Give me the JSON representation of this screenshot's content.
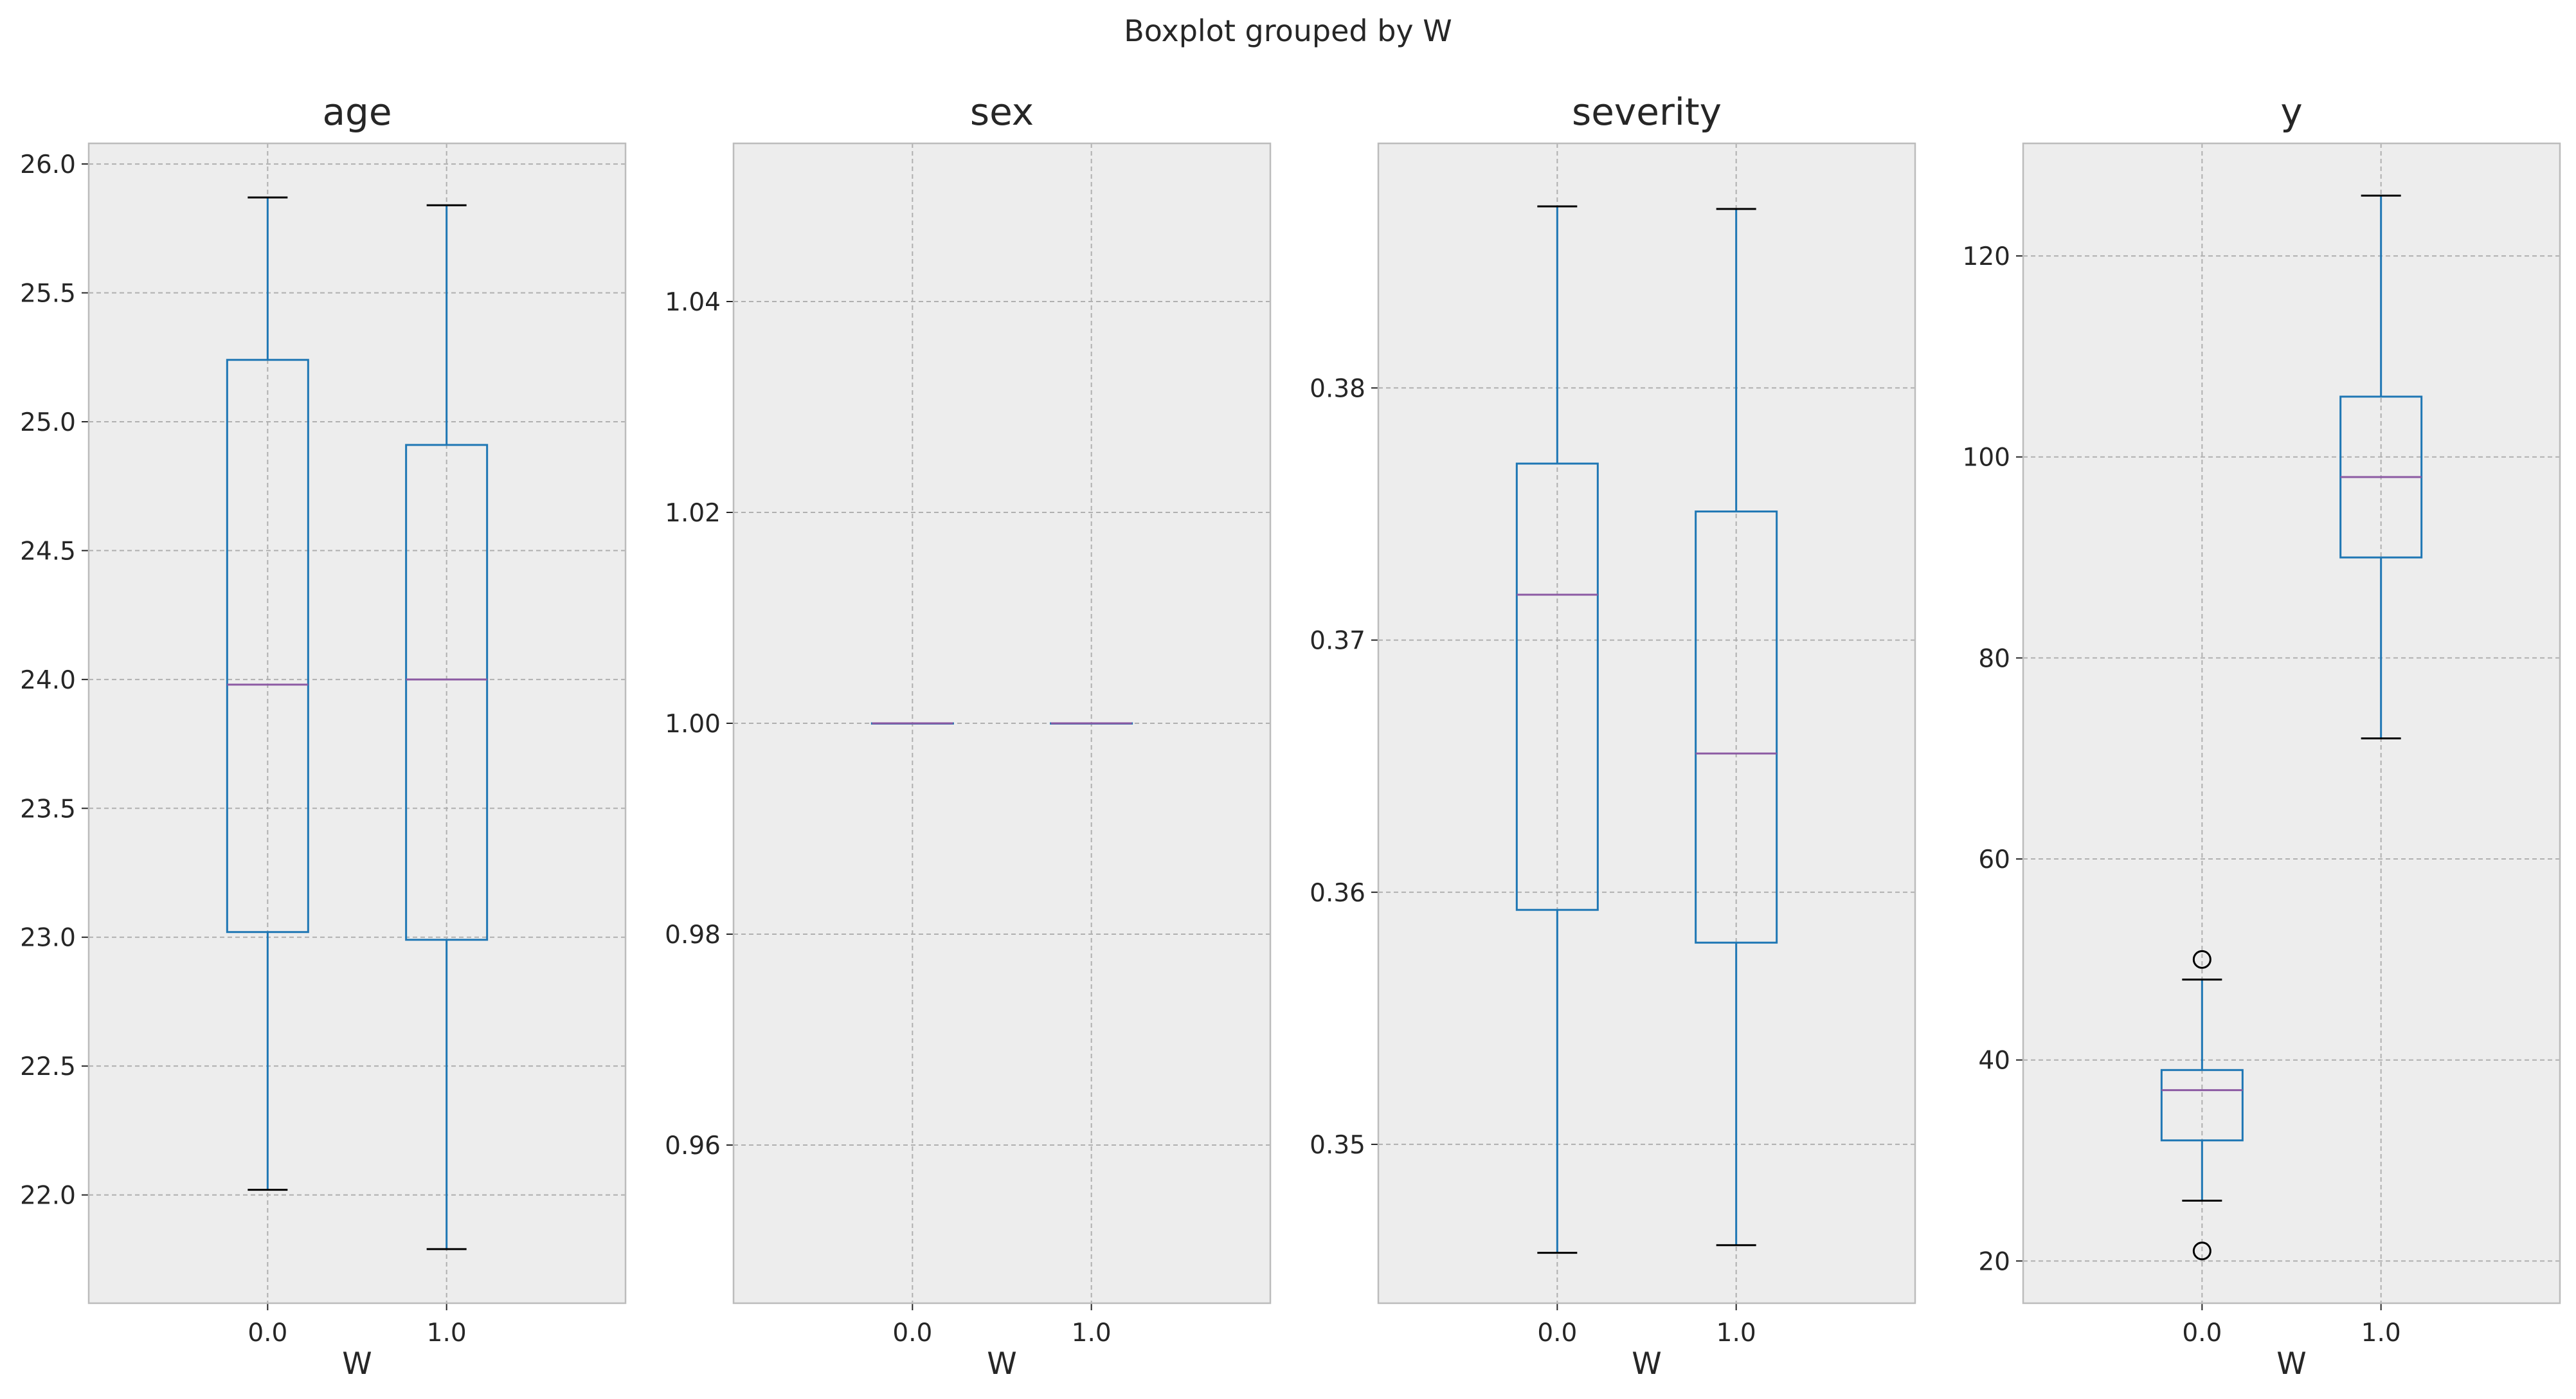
{
  "suptitle": "Boxplot grouped by W",
  "colors": {
    "box": "#1f77b4",
    "median": "#8c5aa3",
    "background": "#ededed",
    "grid": "#b0b0b0",
    "spine": "#bcbcbc",
    "text": "#262626"
  },
  "chart_data": [
    {
      "type": "boxplot",
      "title": "age",
      "xlabel": "W",
      "categories": [
        "0.0",
        "1.0"
      ],
      "ylim": [
        21.58,
        26.08
      ],
      "yticks": [
        22.0,
        22.5,
        23.0,
        23.5,
        24.0,
        24.5,
        25.0,
        25.5,
        26.0
      ],
      "ytick_labels": [
        "22.0",
        "22.5",
        "23.0",
        "23.5",
        "24.0",
        "24.5",
        "25.0",
        "25.5",
        "26.0"
      ],
      "boxes": [
        {
          "category": "0.0",
          "whislo": 22.02,
          "q1": 23.02,
          "med": 23.98,
          "q3": 25.24,
          "whishi": 25.87,
          "fliers": []
        },
        {
          "category": "1.0",
          "whislo": 21.79,
          "q1": 22.99,
          "med": 24.0,
          "q3": 24.91,
          "whishi": 25.84,
          "fliers": []
        }
      ],
      "grid": true
    },
    {
      "type": "boxplot",
      "title": "sex",
      "xlabel": "W",
      "categories": [
        "0.0",
        "1.0"
      ],
      "ylim": [
        0.945,
        1.055
      ],
      "yticks": [
        0.96,
        0.98,
        1.0,
        1.02,
        1.04
      ],
      "ytick_labels": [
        "0.96",
        "0.98",
        "1.00",
        "1.02",
        "1.04"
      ],
      "boxes": [
        {
          "category": "0.0",
          "whislo": 1.0,
          "q1": 1.0,
          "med": 1.0,
          "q3": 1.0,
          "whishi": 1.0,
          "fliers": []
        },
        {
          "category": "1.0",
          "whislo": 1.0,
          "q1": 1.0,
          "med": 1.0,
          "q3": 1.0,
          "whishi": 1.0,
          "fliers": []
        }
      ],
      "grid": true
    },
    {
      "type": "boxplot",
      "title": "severity",
      "xlabel": "W",
      "categories": [
        "0.0",
        "1.0"
      ],
      "ylim": [
        0.3437,
        0.3897
      ],
      "yticks": [
        0.35,
        0.36,
        0.37,
        0.38
      ],
      "ytick_labels": [
        "0.35",
        "0.36",
        "0.37",
        "0.38"
      ],
      "boxes": [
        {
          "category": "0.0",
          "whislo": 0.3457,
          "q1": 0.3593,
          "med": 0.3718,
          "q3": 0.377,
          "whishi": 0.3872,
          "fliers": []
        },
        {
          "category": "1.0",
          "whislo": 0.346,
          "q1": 0.358,
          "med": 0.3655,
          "q3": 0.3751,
          "whishi": 0.3871,
          "fliers": []
        }
      ],
      "grid": true
    },
    {
      "type": "boxplot",
      "title": "y",
      "xlabel": "W",
      "categories": [
        "0.0",
        "1.0"
      ],
      "ylim": [
        15.8,
        131.2
      ],
      "yticks": [
        20,
        40,
        60,
        80,
        100,
        120
      ],
      "ytick_labels": [
        "20",
        "40",
        "60",
        "80",
        "100",
        "120"
      ],
      "boxes": [
        {
          "category": "0.0",
          "whislo": 26,
          "q1": 32,
          "med": 37,
          "q3": 39,
          "whishi": 48,
          "fliers": [
            50,
            21
          ]
        },
        {
          "category": "1.0",
          "whislo": 72,
          "q1": 90,
          "med": 98,
          "q3": 106,
          "whishi": 126,
          "fliers": []
        }
      ],
      "grid": true
    }
  ]
}
